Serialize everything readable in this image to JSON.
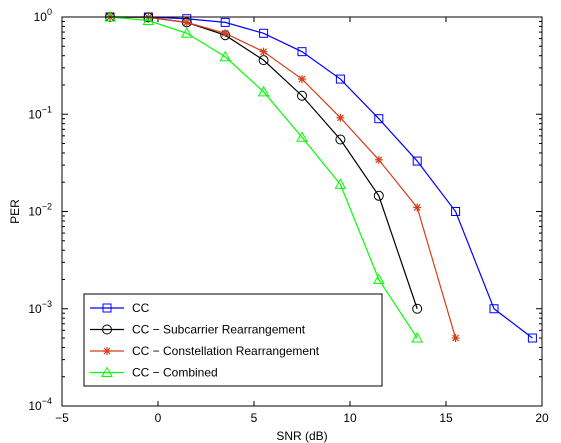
{
  "chart_data": {
    "type": "line",
    "title": "",
    "xlabel": "SNR (dB)",
    "ylabel": "PER",
    "xlim": [
      -5,
      20
    ],
    "ylim": [
      0.0001,
      1
    ],
    "yscale": "log",
    "grid": false,
    "legend_position": "bottom-left",
    "x_ticks": [
      "−5",
      "0",
      "5",
      "10",
      "15",
      "20"
    ],
    "y_ticks": [
      {
        "base": "10",
        "exp": "−4"
      },
      {
        "base": "10",
        "exp": "−3"
      },
      {
        "base": "10",
        "exp": "−2"
      },
      {
        "base": "10",
        "exp": "−1"
      },
      {
        "base": "10",
        "exp": "0"
      }
    ],
    "series": [
      {
        "name": "CC",
        "color": "#0000ff",
        "marker": "square",
        "x": [
          -2.5,
          -0.5,
          1.5,
          3.5,
          5.5,
          7.5,
          9.5,
          11.5,
          13.5,
          15.5,
          17.5,
          19.5
        ],
        "y": [
          1.0,
          1.0,
          0.96,
          0.88,
          0.68,
          0.44,
          0.23,
          0.09,
          0.033,
          0.01,
          0.001,
          0.0005
        ]
      },
      {
        "name": "CC − Subcarrier Rearrangement",
        "color": "#000000",
        "marker": "circle",
        "x": [
          -2.5,
          -0.5,
          1.5,
          3.5,
          5.5,
          7.5,
          9.5,
          11.5,
          13.5
        ],
        "y": [
          1.0,
          0.99,
          0.88,
          0.65,
          0.36,
          0.155,
          0.055,
          0.0145,
          0.001
        ]
      },
      {
        "name": "CC − Constellation Rearrangement",
        "color": "#d43f1a",
        "marker": "star",
        "x": [
          -2.5,
          -0.5,
          1.5,
          3.5,
          5.5,
          7.5,
          9.5,
          11.5,
          13.5,
          15.5
        ],
        "y": [
          1.0,
          0.99,
          0.88,
          0.68,
          0.44,
          0.23,
          0.092,
          0.034,
          0.011,
          0.0005
        ]
      },
      {
        "name": "CC − Combined",
        "color": "#00ff00",
        "marker": "triangle",
        "x": [
          -2.5,
          -0.5,
          1.5,
          3.5,
          5.5,
          7.5,
          9.5,
          11.5,
          13.5
        ],
        "y": [
          1.0,
          0.92,
          0.68,
          0.39,
          0.17,
          0.058,
          0.019,
          0.002,
          0.0005
        ]
      }
    ]
  }
}
